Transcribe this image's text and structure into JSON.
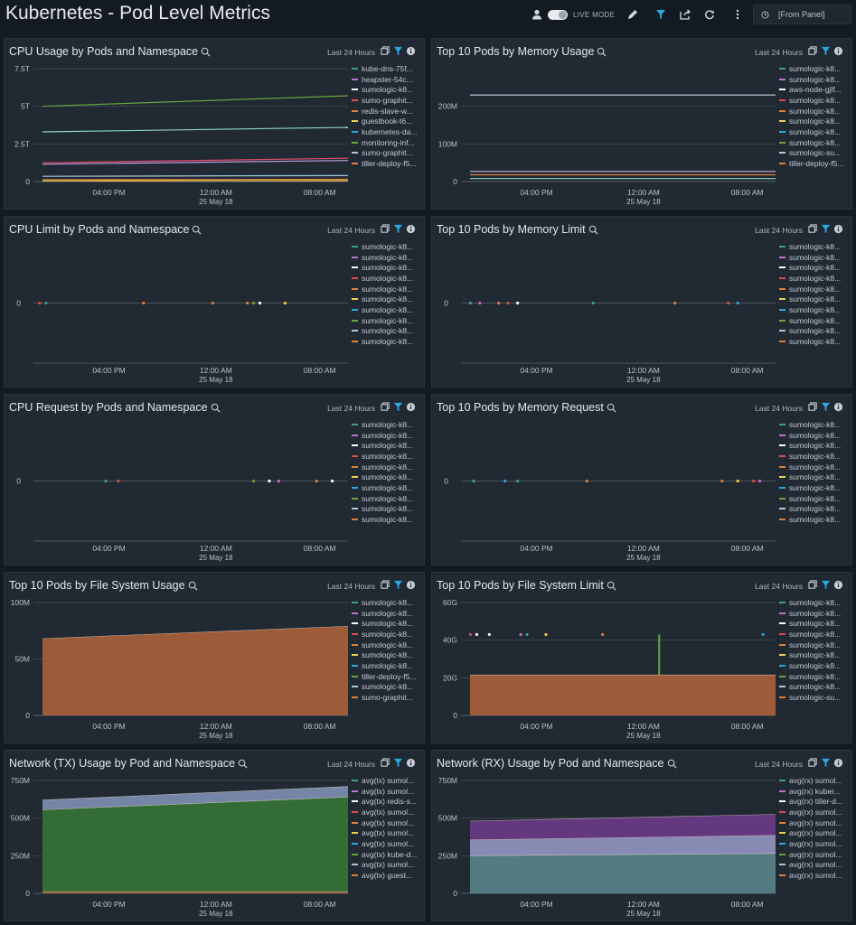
{
  "dashboard": {
    "title": "Kubernetes - Pod Level Metrics",
    "live_mode_label": "LIVE MODE",
    "time_range_label": "[From Panel]"
  },
  "colors": {
    "background": "#141a21",
    "panel": "#212932",
    "accent": "#2aa8e0",
    "fill_orange": "#a9603a",
    "fill_green": "#2f6a2b",
    "fill_purple": "#6a3a86",
    "fill_teal": "#507a7e"
  },
  "panels": [
    {
      "title": "CPU Usage by Pods and Namespace",
      "range": "Last 24 Hours",
      "legend": [
        "kube-dns-75f...",
        "heapster-54c...",
        "sumologic-k8...",
        "sumo-graphit...",
        "redis-slave-w...",
        "guestbook-t6...",
        "kubernetes-da...",
        "monitoring-inf...",
        "sumo-graphit...",
        "tiller-deploy-f5..."
      ],
      "chart_data": {
        "type": "line",
        "yticks": [
          "0",
          "2.5T",
          "5T",
          "7.5T"
        ],
        "ylim": [
          0,
          7.5
        ],
        "xticks": [
          "04:00 PM",
          "12:00 AM",
          "08:00 AM"
        ],
        "date_label": "25 May 18",
        "series": [
          {
            "color": "#6aa33f",
            "start": 5.0,
            "end": 5.7
          },
          {
            "color": "#8fd3c9",
            "start": 3.3,
            "end": 3.6
          },
          {
            "color": "#e04c6d",
            "start": 1.25,
            "end": 1.55
          },
          {
            "color": "#b8a0d8",
            "start": 1.15,
            "end": 1.4
          },
          {
            "color": "#a7c9e0",
            "start": 0.35,
            "end": 0.4
          },
          {
            "color": "#e07f3b",
            "start": 0.12,
            "end": 0.15
          },
          {
            "color": "#f0d04a",
            "start": 0.05,
            "end": 0.06
          }
        ]
      }
    },
    {
      "title": "Top 10 Pods by Memory Usage",
      "range": "Last 24 Hours",
      "legend": [
        "sumologic-k8...",
        "sumologic-k8...",
        "aws-node-gjlf...",
        "sumologic-k8...",
        "sumologic-k8...",
        "sumologic-k8...",
        "sumologic-k8...",
        "sumologic-k8...",
        "sumologic-su...",
        "tiller-deploy-f5..."
      ],
      "chart_data": {
        "type": "line",
        "yticks": [
          "0",
          "100M",
          "200M"
        ],
        "ylim": [
          0,
          300
        ],
        "xticks": [
          "04:00 PM",
          "12:00 AM",
          "08:00 AM"
        ],
        "date_label": "25 May 18",
        "series": [
          {
            "color": "#c7d7e8",
            "start": 230,
            "end": 230
          },
          {
            "color": "#b8a0d8",
            "start": 27,
            "end": 27
          },
          {
            "color": "#e07f3b",
            "start": 18,
            "end": 18
          },
          {
            "color": "#8fd3c9",
            "start": 8,
            "end": 8
          }
        ]
      }
    },
    {
      "title": "CPU Limit by Pods and Namespace",
      "range": "Last 24 Hours",
      "legend": [
        "sumologic-k8...",
        "sumologic-k8...",
        "sumologic-k8...",
        "sumologic-k8...",
        "sumologic-k8...",
        "sumologic-k8...",
        "sumologic-k8...",
        "sumologic-k8...",
        "sumologic-k8...",
        "sumologic-k8..."
      ],
      "chart_data": {
        "type": "scatter",
        "yticks": [
          "0"
        ],
        "xticks": [
          "04:00 PM",
          "12:00 AM",
          "08:00 AM"
        ],
        "date_label": "25 May 18",
        "points": [
          {
            "t": 0.02,
            "color": "#e04c4c"
          },
          {
            "t": 0.04,
            "color": "#3ba08e"
          },
          {
            "t": 0.35,
            "color": "#e07f3b"
          },
          {
            "t": 0.57,
            "color": "#e07f3b"
          },
          {
            "t": 0.68,
            "color": "#e07f3b"
          },
          {
            "t": 0.7,
            "color": "#6aa33f"
          },
          {
            "t": 0.72,
            "color": "#ffffff"
          },
          {
            "t": 0.8,
            "color": "#f0d04a"
          }
        ]
      }
    },
    {
      "title": "Top 10 Pods by Memory Limit",
      "range": "Last 24 Hours",
      "legend": [
        "sumologic-k8...",
        "sumologic-k8...",
        "sumologic-k8...",
        "sumologic-k8...",
        "sumologic-k8...",
        "sumologic-k8...",
        "sumologic-k8...",
        "sumologic-k8...",
        "sumologic-k8...",
        "sumologic-k8..."
      ],
      "chart_data": {
        "type": "scatter",
        "yticks": [
          "0"
        ],
        "xticks": [
          "04:00 PM",
          "12:00 AM",
          "08:00 AM"
        ],
        "date_label": "25 May 18",
        "points": [
          {
            "t": 0.03,
            "color": "#3ba08e"
          },
          {
            "t": 0.06,
            "color": "#c070d0"
          },
          {
            "t": 0.12,
            "color": "#e07f3b"
          },
          {
            "t": 0.15,
            "color": "#e04c4c"
          },
          {
            "t": 0.18,
            "color": "#ffffff"
          },
          {
            "t": 0.42,
            "color": "#3ba08e"
          },
          {
            "t": 0.68,
            "color": "#e07f3b"
          },
          {
            "t": 0.85,
            "color": "#e04c4c"
          },
          {
            "t": 0.88,
            "color": "#2aa8e0"
          }
        ]
      }
    },
    {
      "title": "CPU Request by Pods and Namespace",
      "range": "Last 24 Hours",
      "legend": [
        "sumologic-k8...",
        "sumologic-k8...",
        "sumologic-k8...",
        "sumologic-k8...",
        "sumologic-k8...",
        "sumologic-k8...",
        "sumologic-k8...",
        "sumologic-k8...",
        "sumologic-k8...",
        "sumologic-k8..."
      ],
      "chart_data": {
        "type": "scatter",
        "yticks": [
          "0"
        ],
        "xticks": [
          "04:00 PM",
          "12:00 AM",
          "08:00 AM"
        ],
        "date_label": "25 May 18",
        "points": [
          {
            "t": 0.23,
            "color": "#3ba08e"
          },
          {
            "t": 0.27,
            "color": "#e04c4c"
          },
          {
            "t": 0.7,
            "color": "#6aa33f"
          },
          {
            "t": 0.75,
            "color": "#ffffff"
          },
          {
            "t": 0.78,
            "color": "#c070d0"
          },
          {
            "t": 0.9,
            "color": "#e07f3b"
          },
          {
            "t": 0.95,
            "color": "#ffffff"
          }
        ]
      }
    },
    {
      "title": "Top 10 Pods by Memory Request",
      "range": "Last 24 Hours",
      "legend": [
        "sumologic-k8...",
        "sumologic-k8...",
        "sumologic-k8...",
        "sumologic-k8...",
        "sumologic-k8...",
        "sumologic-k8...",
        "sumologic-k8...",
        "sumologic-k8...",
        "sumologic-k8...",
        "sumologic-k8..."
      ],
      "chart_data": {
        "type": "scatter",
        "yticks": [
          "0"
        ],
        "xticks": [
          "04:00 PM",
          "12:00 AM",
          "08:00 AM"
        ],
        "date_label": "25 May 18",
        "points": [
          {
            "t": 0.04,
            "color": "#3ba08e"
          },
          {
            "t": 0.14,
            "color": "#2aa8e0"
          },
          {
            "t": 0.18,
            "color": "#3ba08e"
          },
          {
            "t": 0.4,
            "color": "#e07f3b"
          },
          {
            "t": 0.83,
            "color": "#e07f3b"
          },
          {
            "t": 0.88,
            "color": "#f0d04a"
          },
          {
            "t": 0.93,
            "color": "#e04c4c"
          },
          {
            "t": 0.95,
            "color": "#c070d0"
          }
        ]
      }
    },
    {
      "title": "Top 10 Pods by File System Usage",
      "range": "Last 24 Hours",
      "legend": [
        "sumologic-k8...",
        "sumologic-k8...",
        "sumologic-k8...",
        "sumologic-k8...",
        "sumologic-k8...",
        "sumologic-k8...",
        "sumologic-k8...",
        "tiller-deploy-f5...",
        "sumologic-k8...",
        "sumo-graphit..."
      ],
      "chart_data": {
        "type": "area",
        "yticks": [
          "0",
          "50M",
          "100M"
        ],
        "ylim": [
          0,
          100
        ],
        "xticks": [
          "04:00 PM",
          "12:00 AM",
          "08:00 AM"
        ],
        "date_label": "25 May 18",
        "series": [
          {
            "color": "#a9603a",
            "start": 68,
            "end": 79
          }
        ]
      }
    },
    {
      "title": "Top 10 Pods by File System Limit",
      "range": "Last 24 Hours",
      "legend": [
        "sumologic-k8...",
        "sumologic-k8...",
        "sumologic-k8...",
        "sumologic-k8...",
        "sumologic-k8...",
        "sumologic-k8...",
        "sumologic-k8...",
        "sumologic-k8...",
        "sumologic-k8...",
        "sumologic-su..."
      ],
      "chart_data": {
        "type": "area",
        "yticks": [
          "0",
          "20G",
          "40G",
          "60G"
        ],
        "ylim": [
          0,
          60
        ],
        "xticks": [
          "04:00 PM",
          "12:00 AM",
          "08:00 AM"
        ],
        "date_label": "25 May 18",
        "series": [
          {
            "color": "#a9603a",
            "start": 21.5,
            "end": 21.5
          }
        ],
        "spike": {
          "t": 0.63,
          "value": 43,
          "color": "#6aa33f"
        },
        "points_value": 43,
        "points": [
          {
            "t": 0.03,
            "color": "#e04c4c"
          },
          {
            "t": 0.05,
            "color": "#ffffff"
          },
          {
            "t": 0.09,
            "color": "#ffffff"
          },
          {
            "t": 0.19,
            "color": "#c070d0"
          },
          {
            "t": 0.21,
            "color": "#3ba08e"
          },
          {
            "t": 0.27,
            "color": "#f0d04a"
          },
          {
            "t": 0.45,
            "color": "#e07f3b"
          },
          {
            "t": 0.96,
            "color": "#2aa8e0"
          }
        ]
      }
    },
    {
      "title": "Network (TX) Usage by Pod and Namespace",
      "range": "Last 24 Hours",
      "legend": [
        "avg(tx) sumol...",
        "avg(tx) sumol...",
        "avg(tx) redis-s...",
        "avg(tx) sumol...",
        "avg(tx) sumol...",
        "avg(tx) sumol...",
        "avg(tx) sumol...",
        "avg(tx) kube-d...",
        "avg(tx) sumol...",
        "avg(tx) guest..."
      ],
      "chart_data": {
        "type": "area",
        "yticks": [
          "0",
          "250M",
          "500M",
          "750M"
        ],
        "ylim": [
          0,
          750
        ],
        "xticks": [
          "04:00 PM",
          "12:00 AM",
          "08:00 AM"
        ],
        "date_label": "25 May 18",
        "series": [
          {
            "color": "#7d8db0",
            "start": 620,
            "end": 710
          },
          {
            "color": "#2f6a2b",
            "start": 555,
            "end": 640
          },
          {
            "color": "#a9603a",
            "start": 12,
            "end": 12
          }
        ]
      }
    },
    {
      "title": "Network (RX) Usage by Pod and Namespace",
      "range": "Last 24 Hours",
      "legend": [
        "avg(rx) sumol...",
        "avg(rx) kuber...",
        "avg(rx) tiller-d...",
        "avg(rx) sumol...",
        "avg(rx) sumol...",
        "avg(rx) sumol...",
        "avg(rx) sumol...",
        "avg(rx) sumol...",
        "avg(rx) sumol...",
        "avg(rx) sumol..."
      ],
      "chart_data": {
        "type": "area",
        "yticks": [
          "0",
          "250M",
          "500M",
          "750M"
        ],
        "ylim": [
          0,
          750
        ],
        "xticks": [
          "04:00 PM",
          "12:00 AM",
          "08:00 AM"
        ],
        "date_label": "25 May 18",
        "series": [
          {
            "color": "#6a3a86",
            "start": 480,
            "end": 525
          },
          {
            "color": "#8a93b8",
            "start": 355,
            "end": 385
          },
          {
            "color": "#507a7e",
            "start": 250,
            "end": 265
          }
        ]
      }
    }
  ],
  "legend_colors": [
    "#3ba08e",
    "#c070d0",
    "#ffffff",
    "#e04c4c",
    "#e07f3b",
    "#f0d04a",
    "#2aa8e0",
    "#6aa33f",
    "#a7c9e0",
    "#e07f3b"
  ]
}
